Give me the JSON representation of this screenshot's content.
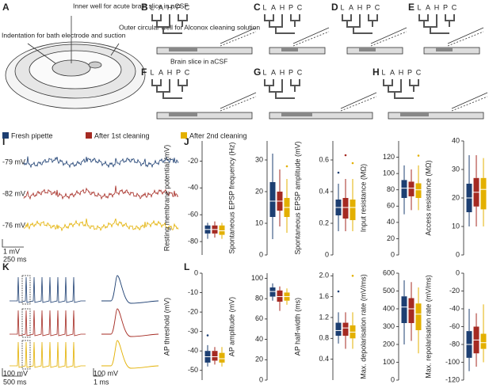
{
  "panels": [
    "A",
    "B",
    "C",
    "D",
    "E",
    "F",
    "G",
    "H",
    "I",
    "J",
    "K",
    "L"
  ],
  "schematic": {
    "inner_well": "Inner well for acute brain slice in aCSF",
    "outer_well": "Outer circular well for Alconox cleaning solution",
    "indentation": "Indentation for bath electrode and suction",
    "slice": "Brain slice in aCSF",
    "tree_labels": [
      "L",
      "A",
      "H",
      "P",
      "C"
    ]
  },
  "legend": [
    {
      "name": "Fresh pipette",
      "color": "#1d3f72"
    },
    {
      "name": "After 1st cleaning",
      "color": "#a52a22"
    },
    {
      "name": "After 2nd cleaning",
      "color": "#e3b000"
    }
  ],
  "traces": {
    "potentials": [
      "-79 mV",
      "-82 mV",
      "-76 mV"
    ],
    "scale_v": "1 mV",
    "scale_t": "250 ms",
    "ap_scale_v": "100 mV",
    "ap_scale_t": "500 ms",
    "ap_zoom_v": "100 mV",
    "ap_zoom_t": "1 ms"
  },
  "chart_data": [
    {
      "type": "box",
      "ylabel": "Resting membrane potential (mV)",
      "ylim": [
        -90,
        -5
      ],
      "yticks": [
        -80,
        -60,
        -40,
        -20
      ],
      "series": [
        {
          "whislo": -78,
          "q1": -74,
          "med": -71,
          "q3": -68,
          "whishi": -66,
          "fliers": []
        },
        {
          "whislo": -77,
          "q1": -74,
          "med": -71,
          "q3": -68,
          "whishi": -65,
          "fliers": []
        },
        {
          "whislo": -78,
          "q1": -75,
          "med": -72,
          "q3": -68,
          "whishi": -66,
          "fliers": []
        }
      ]
    },
    {
      "type": "box",
      "ylabel": "Spontaneous EPSP frequency (Hz)",
      "ylim": [
        0,
        36
      ],
      "yticks": [
        0,
        10,
        20,
        30
      ],
      "series": [
        {
          "whislo": 5,
          "q1": 12,
          "med": 17,
          "q3": 23,
          "whishi": 32,
          "fliers": []
        },
        {
          "whislo": 9,
          "q1": 14,
          "med": 17,
          "q3": 20,
          "whishi": 27,
          "fliers": []
        },
        {
          "whislo": 7,
          "q1": 12,
          "med": 15,
          "q3": 18,
          "whishi": 24,
          "fliers": [
            28
          ]
        }
      ]
    },
    {
      "type": "box",
      "ylabel": "Spontaneous EPSP amplitude (mV)",
      "ylim": [
        0,
        0.72
      ],
      "yticks": [
        0,
        0.2,
        0.4,
        0.6
      ],
      "series": [
        {
          "whislo": 0.15,
          "q1": 0.25,
          "med": 0.3,
          "q3": 0.35,
          "whishi": 0.45,
          "fliers": [
            0.52
          ]
        },
        {
          "whislo": 0.15,
          "q1": 0.23,
          "med": 0.3,
          "q3": 0.36,
          "whishi": 0.48,
          "fliers": [
            0.63
          ]
        },
        {
          "whislo": 0.15,
          "q1": 0.22,
          "med": 0.3,
          "q3": 0.35,
          "whishi": 0.48,
          "fliers": [
            0.58
          ]
        }
      ]
    },
    {
      "type": "box",
      "ylabel": "Input resistance (MΩ)",
      "ylim": [
        0,
        140
      ],
      "yticks": [
        0,
        20,
        40,
        60,
        80,
        100,
        120
      ],
      "series": [
        {
          "whislo": 50,
          "q1": 70,
          "med": 82,
          "q3": 92,
          "whishi": 110,
          "fliers": []
        },
        {
          "whislo": 55,
          "q1": 72,
          "med": 82,
          "q3": 90,
          "whishi": 105,
          "fliers": []
        },
        {
          "whislo": 55,
          "q1": 70,
          "med": 80,
          "q3": 88,
          "whishi": 110,
          "fliers": [
            122
          ]
        }
      ]
    },
    {
      "type": "box",
      "ylabel": "Access resistance (MΩ)",
      "ylim": [
        0,
        40
      ],
      "yticks": [
        0,
        10,
        20,
        30,
        40
      ],
      "series": [
        {
          "whislo": 10,
          "q1": 15,
          "med": 20,
          "q3": 25,
          "whishi": 35,
          "fliers": []
        },
        {
          "whislo": 10,
          "q1": 17,
          "med": 22,
          "q3": 27,
          "whishi": 35,
          "fliers": []
        },
        {
          "whislo": 10,
          "q1": 16,
          "med": 23,
          "q3": 27,
          "whishi": 34,
          "fliers": []
        }
      ]
    },
    {
      "type": "box",
      "ylabel": "AP threshold (mV)",
      "ylim": [
        -55,
        0
      ],
      "yticks": [
        -50,
        -40,
        -30,
        -20,
        -10,
        0
      ],
      "series": [
        {
          "whislo": -48,
          "q1": -46,
          "med": -43,
          "q3": -40,
          "whishi": -37,
          "fliers": [
            -32
          ]
        },
        {
          "whislo": -47,
          "q1": -45,
          "med": -43,
          "q3": -40,
          "whishi": -38,
          "fliers": []
        },
        {
          "whislo": -48,
          "q1": -46,
          "med": -44,
          "q3": -41,
          "whishi": -38,
          "fliers": []
        }
      ]
    },
    {
      "type": "box",
      "ylabel": "AP amplitude (mV)",
      "ylim": [
        0,
        105
      ],
      "yticks": [
        0,
        20,
        40,
        60,
        80,
        100
      ],
      "series": [
        {
          "whislo": 78,
          "q1": 82,
          "med": 87,
          "q3": 91,
          "whishi": 95,
          "fliers": []
        },
        {
          "whislo": 68,
          "q1": 77,
          "med": 82,
          "q3": 88,
          "whishi": 92,
          "fliers": []
        },
        {
          "whislo": 74,
          "q1": 78,
          "med": 82,
          "q3": 86,
          "whishi": 90,
          "fliers": []
        }
      ]
    },
    {
      "type": "box",
      "ylabel": "AP half-width (ms)",
      "ylim": [
        0,
        2.05
      ],
      "yticks": [
        {
          "value": 0.4,
          "label": "0.4"
        },
        {
          "value": 0.8,
          "label": "0.8"
        },
        {
          "value": 1.2,
          "label": "1.2"
        },
        {
          "value": 1.6,
          "label": "1.6"
        },
        {
          "value": 2,
          "label": "2.0"
        }
      ],
      "series": [
        {
          "whislo": 0.7,
          "q1": 0.85,
          "med": 0.95,
          "q3": 1.1,
          "whishi": 1.3,
          "fliers": [
            1.7
          ]
        },
        {
          "whislo": 0.6,
          "q1": 0.85,
          "med": 1,
          "q3": 1.1,
          "whishi": 1.3,
          "fliers": []
        },
        {
          "whislo": 0.6,
          "q1": 0.8,
          "med": 0.92,
          "q3": 1.05,
          "whishi": 1.3,
          "fliers": [
            2
          ]
        }
      ]
    },
    {
      "type": "box",
      "ylabel": "Max. depolarisation rate (mV/ms)",
      "ylim": [
        0,
        600
      ],
      "yticks": [
        0,
        100,
        200,
        300,
        400,
        500,
        600
      ],
      "series": [
        {
          "whislo": 200,
          "q1": 320,
          "med": 410,
          "q3": 470,
          "whishi": 560,
          "fliers": []
        },
        {
          "whislo": 220,
          "q1": 320,
          "med": 400,
          "q3": 460,
          "whishi": 550,
          "fliers": []
        },
        {
          "whislo": 150,
          "q1": 280,
          "med": 370,
          "q3": 430,
          "whishi": 520,
          "fliers": []
        }
      ]
    },
    {
      "type": "box",
      "ylabel": "Max. repolarisation rate (mV/ms)",
      "ylim": [
        -120,
        0
      ],
      "yticks": [
        -120,
        -100,
        -80,
        -60,
        -40,
        -20,
        0
      ],
      "series": [
        {
          "whislo": -110,
          "q1": -95,
          "med": -80,
          "q3": -65,
          "whishi": -40,
          "fliers": []
        },
        {
          "whislo": -105,
          "q1": -90,
          "med": -75,
          "q3": -60,
          "whishi": -45,
          "fliers": []
        },
        {
          "whislo": -100,
          "q1": -85,
          "med": -78,
          "q3": -68,
          "whishi": -35,
          "fliers": []
        }
      ]
    }
  ]
}
